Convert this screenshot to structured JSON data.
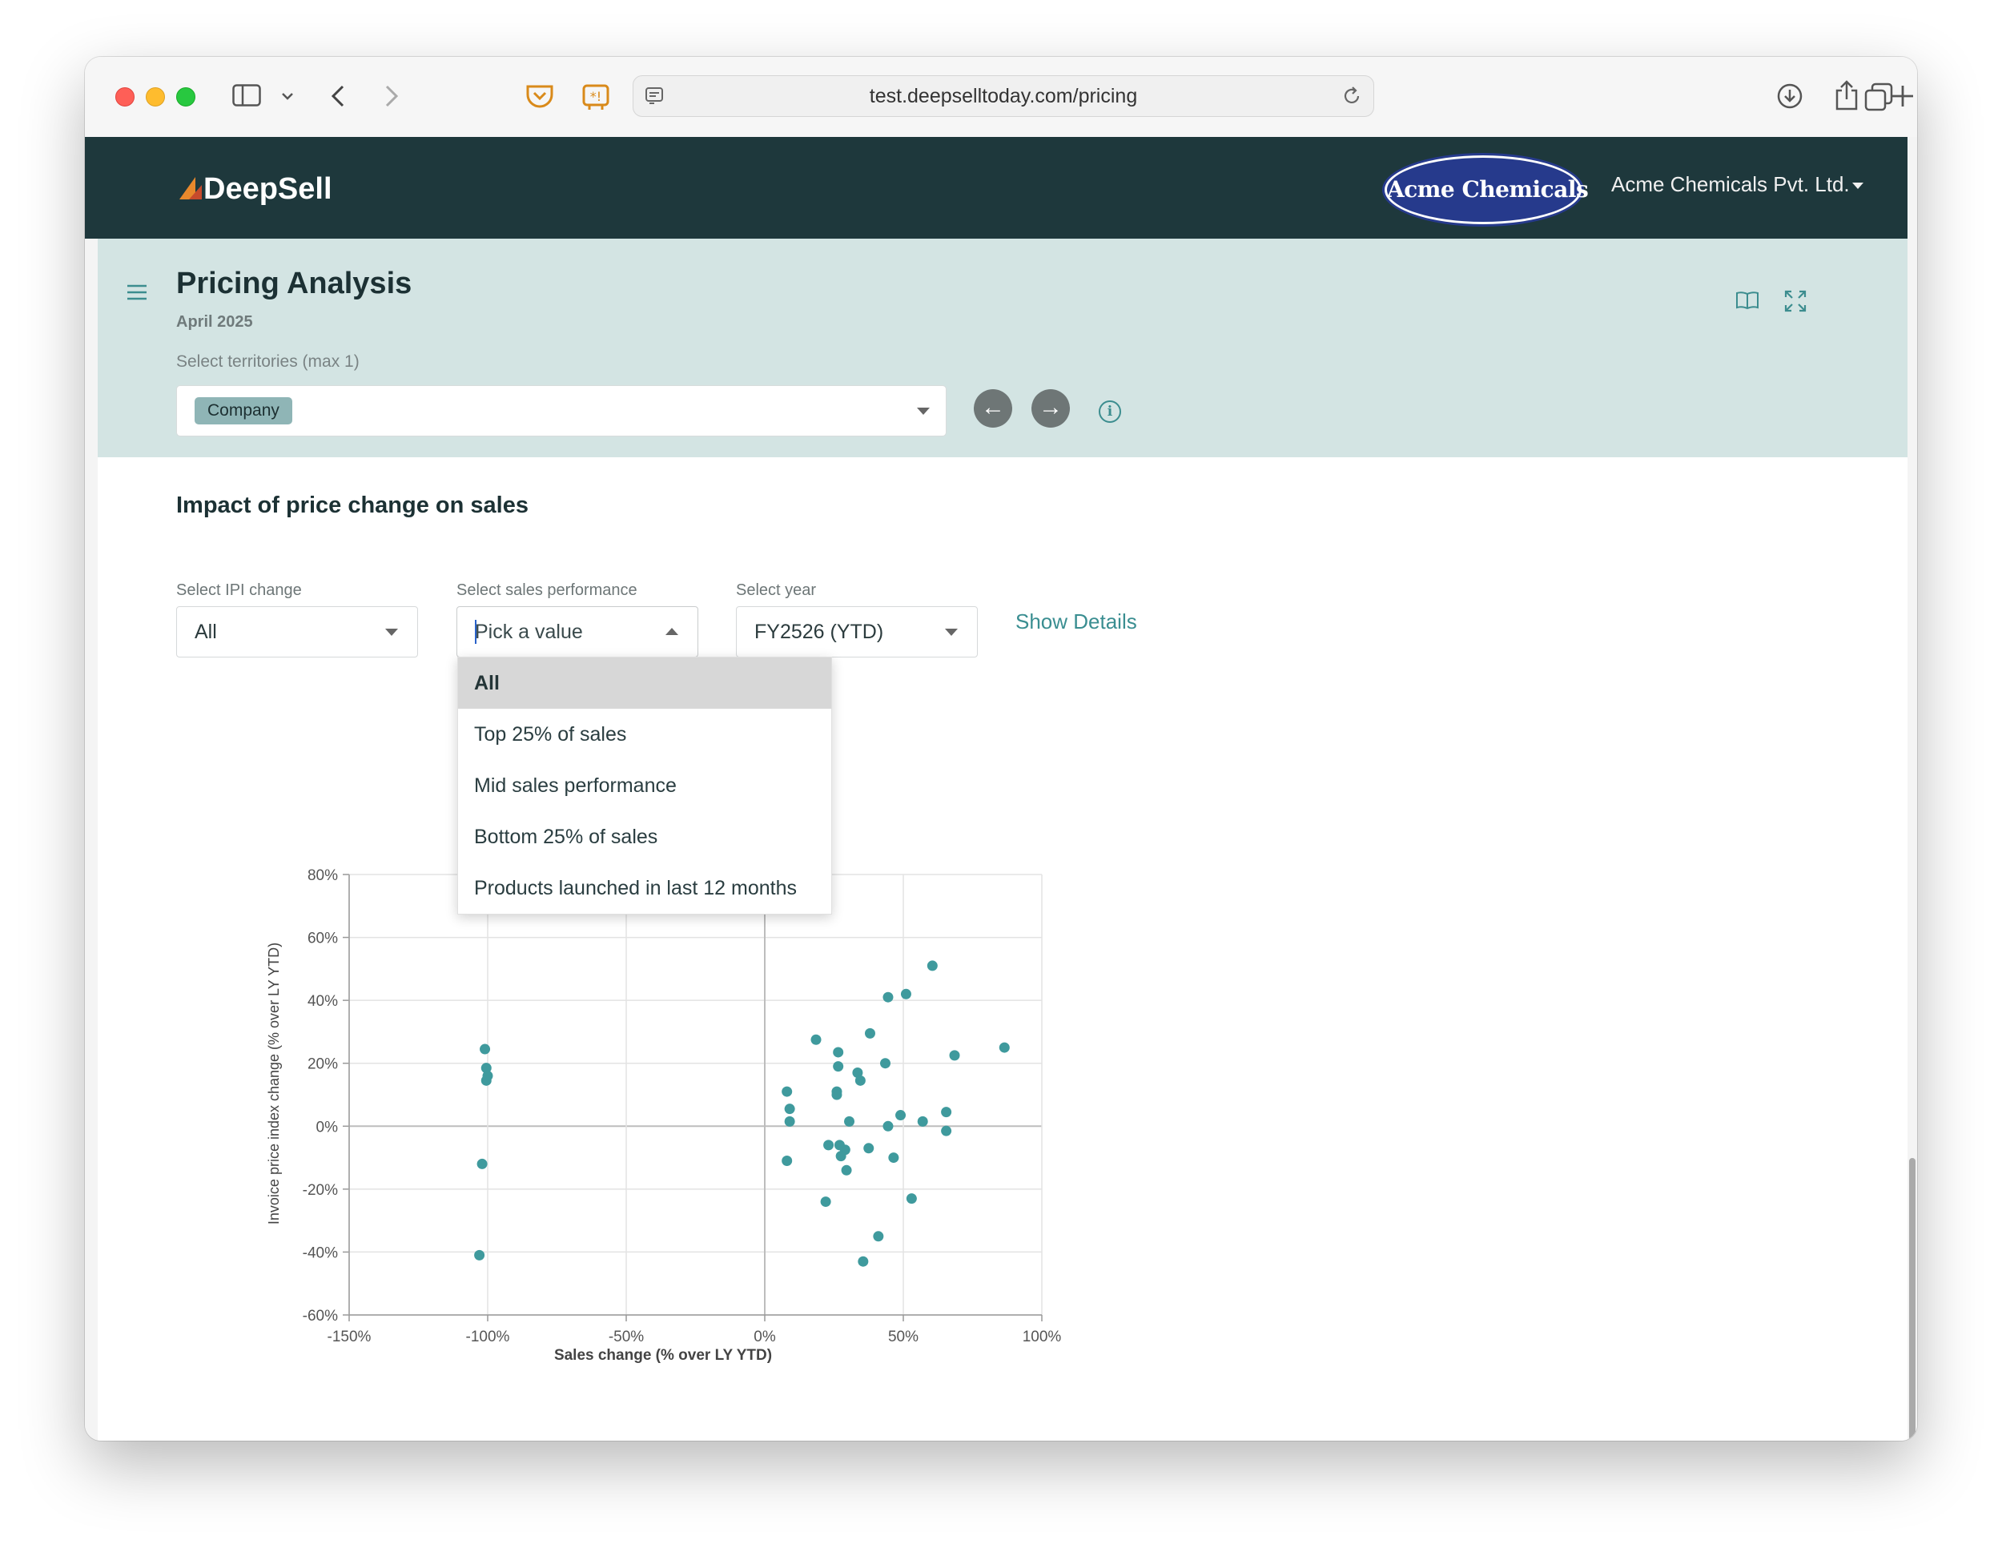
{
  "browser": {
    "url": "test.deepselltoday.com/pricing",
    "icons": [
      "sidebar-icon",
      "chevron-down-icon",
      "back-icon",
      "forward-icon",
      "pocket-icon",
      "extension-icon",
      "page-icon",
      "reload-icon",
      "download-icon",
      "share-icon",
      "new-tab-icon",
      "tabs-icon"
    ]
  },
  "navbar": {
    "brand": "DeepSell",
    "client_logo_text": "Acme Chemicals",
    "company": "Acme Chemicals Pvt. Ltd."
  },
  "header": {
    "title": "Pricing Analysis",
    "subtitle": "April 2025",
    "territory_label": "Select territories (max 1)",
    "territory_chip": "Company",
    "prev_icon": "←",
    "next_icon": "→",
    "info_icon": "i"
  },
  "section": {
    "title": "Impact of price change on sales"
  },
  "filters": {
    "ipi": {
      "label": "Select IPI change",
      "value": "All"
    },
    "sales": {
      "label": "Select sales performance",
      "placeholder": "Pick a value"
    },
    "year": {
      "label": "Select year",
      "value": "FY2526 (YTD)"
    },
    "show_details": "Show Details"
  },
  "dropdown": {
    "options": [
      "All",
      "Top 25% of sales",
      "Mid sales performance",
      "Bottom 25% of sales",
      "Products launched in last 12 months"
    ],
    "highlighted": 0
  },
  "colors": {
    "navbar": "#1e383c",
    "header_band": "#d3e4e3",
    "accent": "#3a8e91",
    "point": "#3f9a9d"
  },
  "chart_data": {
    "type": "scatter",
    "xlabel": "Sales change (% over LY YTD)",
    "ylabel": "Invoice price index change (% over LY YTD)",
    "xlim": [
      -150,
      100
    ],
    "ylim": [
      -60,
      80
    ],
    "x_ticks": [
      -150,
      -100,
      -50,
      0,
      50,
      100
    ],
    "y_ticks": [
      -60,
      -40,
      -20,
      0,
      20,
      40,
      60,
      80
    ],
    "x_tick_labels": [
      "-150%",
      "-100%",
      "-50%",
      "0%",
      "50%",
      "100%"
    ],
    "y_tick_labels": [
      "-60%",
      "-40%",
      "-20%",
      "0%",
      "20%",
      "40%",
      "60%",
      "80%"
    ],
    "grid": true,
    "points": [
      [
        -101,
        24.5
      ],
      [
        -100.5,
        18.5
      ],
      [
        -100,
        16
      ],
      [
        -100.5,
        14.5
      ],
      [
        -102,
        -12
      ],
      [
        -103,
        -41
      ],
      [
        60.5,
        51
      ],
      [
        51,
        42
      ],
      [
        44.5,
        41
      ],
      [
        18.5,
        27.5
      ],
      [
        38,
        29.5
      ],
      [
        26.5,
        23.5
      ],
      [
        68.5,
        22.5
      ],
      [
        86.5,
        25
      ],
      [
        43.5,
        20
      ],
      [
        26.5,
        19
      ],
      [
        33.5,
        17
      ],
      [
        34.5,
        14.5
      ],
      [
        26,
        11
      ],
      [
        26,
        10
      ],
      [
        8,
        11
      ],
      [
        9,
        5.5
      ],
      [
        9,
        1.5
      ],
      [
        30.5,
        1.5
      ],
      [
        49,
        3.5
      ],
      [
        65.5,
        4.5
      ],
      [
        57,
        1.5
      ],
      [
        44.5,
        0
      ],
      [
        65.5,
        -1.5
      ],
      [
        23,
        -6
      ],
      [
        27,
        -6
      ],
      [
        29,
        -7.5
      ],
      [
        27.5,
        -9.5
      ],
      [
        37.5,
        -7
      ],
      [
        46.5,
        -10
      ],
      [
        8,
        -11
      ],
      [
        29.5,
        -14
      ],
      [
        22,
        -24
      ],
      [
        53,
        -23
      ],
      [
        41,
        -35
      ],
      [
        35.5,
        -43
      ]
    ]
  }
}
